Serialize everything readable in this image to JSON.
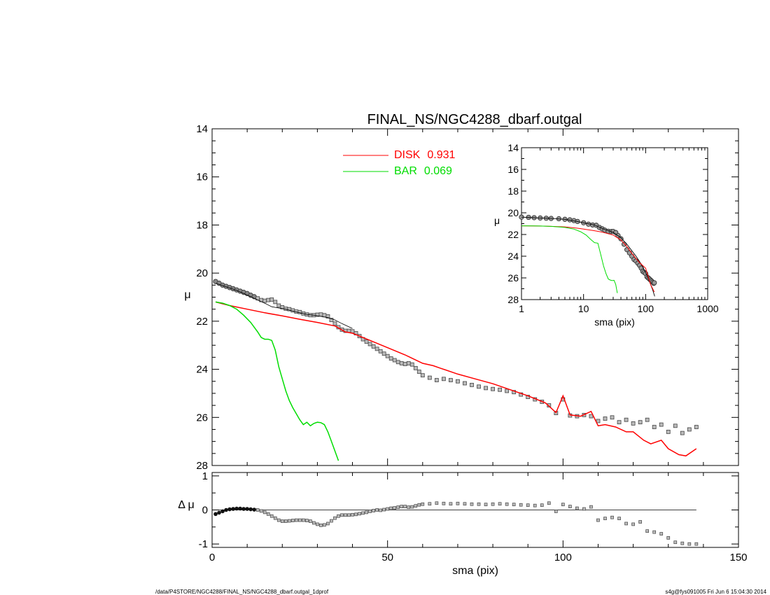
{
  "footer": {
    "left": "/data/P4STORE/NGC4288/FINAL_NS/NGC4288_dbarf.outgal_1dprof",
    "right": "s4g@fys091005  Fri Jun  6 15:04:30 2014"
  },
  "chart_data": [
    {
      "type": "scatter",
      "title": "FINAL_NS/NGC4288_dbarf.outgal",
      "xlabel": "",
      "ylabel": "μ",
      "xlim": [
        0,
        150
      ],
      "ylim": [
        28,
        14
      ],
      "y_inverted": true,
      "y_ticks": [
        "14",
        "16",
        "18",
        "20",
        "22",
        "24",
        "26",
        "28"
      ],
      "legend_placement": "top-center",
      "legend": [
        {
          "label": "DISK",
          "value": "0.931",
          "color": "#ff0000"
        },
        {
          "label": "BAR",
          "value": "0.069",
          "color": "#00dd00"
        }
      ],
      "series": [
        {
          "role": "observed",
          "color": "#555555",
          "marker": "square",
          "x": [
            1,
            2,
            3,
            4,
            5,
            6,
            7,
            8,
            9,
            10,
            11,
            12,
            13,
            14,
            15,
            16,
            17,
            18,
            19,
            20,
            21,
            22,
            23,
            24,
            25,
            26,
            27,
            28,
            29,
            30,
            31,
            32,
            33,
            34,
            35,
            36,
            37,
            38,
            39,
            40,
            41,
            42,
            43,
            44,
            45,
            46,
            47,
            48,
            49,
            50,
            51,
            52,
            53,
            54,
            55,
            56,
            57,
            58,
            59,
            60,
            62,
            64,
            66,
            68,
            70,
            72,
            74,
            76,
            78,
            80,
            82,
            84,
            86,
            88,
            90,
            92,
            94,
            96,
            98,
            100,
            102,
            104,
            106,
            108,
            110,
            112,
            114,
            116,
            118,
            120,
            122,
            124,
            126,
            128,
            130,
            132,
            134,
            136,
            138
          ],
          "y": [
            20.35,
            20.42,
            20.5,
            20.55,
            20.6,
            20.65,
            20.7,
            20.75,
            20.8,
            20.85,
            20.92,
            20.98,
            21.05,
            21.12,
            21.15,
            21.12,
            21.1,
            21.2,
            21.35,
            21.42,
            21.48,
            21.5,
            21.55,
            21.6,
            21.62,
            21.68,
            21.72,
            21.75,
            21.75,
            21.73,
            21.72,
            21.75,
            21.8,
            21.95,
            22.1,
            22.25,
            22.35,
            22.4,
            22.4,
            22.42,
            22.5,
            22.62,
            22.75,
            22.85,
            22.95,
            23.05,
            23.15,
            23.25,
            23.35,
            23.45,
            23.55,
            23.62,
            23.7,
            23.75,
            23.78,
            23.75,
            23.8,
            23.95,
            24.1,
            24.25,
            24.35,
            24.45,
            24.4,
            24.45,
            24.5,
            24.58,
            24.65,
            24.72,
            24.78,
            24.82,
            24.85,
            24.9,
            24.95,
            25.05,
            25.15,
            25.25,
            25.35,
            25.5,
            25.82,
            25.25,
            25.92,
            25.95,
            25.9,
            25.95,
            26.15,
            26.05,
            26.0,
            26.2,
            26.1,
            26.25,
            26.2,
            26.1,
            26.4,
            26.3,
            26.6,
            26.35,
            26.65,
            26.5,
            26.4
          ]
        },
        {
          "role": "total-model",
          "color": "#000000",
          "x": [
            1,
            3,
            5,
            7,
            9,
            11,
            13,
            15,
            17,
            19,
            21,
            23,
            25,
            27,
            29,
            31,
            33,
            35,
            37,
            40
          ],
          "y": [
            20.42,
            20.52,
            20.62,
            20.72,
            20.85,
            20.98,
            21.12,
            21.25,
            21.4,
            21.45,
            21.5,
            21.58,
            21.65,
            21.72,
            21.75,
            21.8,
            21.85,
            21.95,
            22.1,
            22.3
          ]
        },
        {
          "name": "DISK",
          "color": "#ff0000",
          "x": [
            1,
            5,
            10,
            15,
            20,
            25,
            30,
            35,
            38,
            40,
            45,
            50,
            55,
            60,
            63,
            65,
            70,
            75,
            80,
            85,
            90,
            95,
            98,
            100,
            102,
            105,
            108,
            110,
            112,
            115,
            118,
            120,
            123,
            125,
            128,
            130,
            133,
            135,
            138
          ],
          "y": [
            21.2,
            21.35,
            21.5,
            21.65,
            21.78,
            21.92,
            22.05,
            22.2,
            22.45,
            22.5,
            22.8,
            23.1,
            23.4,
            23.75,
            23.85,
            23.95,
            24.2,
            24.4,
            24.6,
            24.85,
            25.1,
            25.4,
            25.8,
            25.1,
            25.9,
            25.95,
            25.75,
            26.35,
            26.3,
            26.4,
            26.6,
            26.6,
            26.95,
            27.1,
            26.95,
            27.3,
            27.55,
            27.6,
            27.3
          ]
        },
        {
          "name": "BAR",
          "color": "#00dd00",
          "x": [
            1,
            3,
            5,
            7,
            9,
            11,
            13,
            14,
            15,
            16,
            17,
            18,
            19,
            20,
            21,
            22,
            23,
            24,
            25,
            26,
            27,
            28,
            29,
            30,
            31,
            32,
            33,
            34,
            35,
            36,
            37
          ],
          "y": [
            21.2,
            21.25,
            21.35,
            21.5,
            21.75,
            22.05,
            22.45,
            22.68,
            22.75,
            22.75,
            22.8,
            23.2,
            23.9,
            24.4,
            24.9,
            25.3,
            25.6,
            25.85,
            26.1,
            26.3,
            26.2,
            26.35,
            26.25,
            26.2,
            26.22,
            26.3,
            26.6,
            27.0,
            27.4,
            27.8,
            28.2
          ]
        }
      ]
    },
    {
      "type": "scatter",
      "title": "",
      "xlabel": "sma (pix)",
      "ylabel": "Δ μ",
      "xlim": [
        0,
        150
      ],
      "ylim": [
        -1.1,
        1.1
      ],
      "x_ticks": [
        "0",
        "50",
        "100",
        "150"
      ],
      "y_ticks": [
        "1",
        "0",
        "-1"
      ],
      "zero_line": true,
      "series": [
        {
          "role": "residual",
          "color": "#555555",
          "marker": "square",
          "x": [
            1,
            2,
            3,
            4,
            5,
            6,
            7,
            8,
            9,
            10,
            11,
            12,
            13,
            14,
            15,
            16,
            17,
            18,
            19,
            20,
            21,
            22,
            23,
            24,
            25,
            26,
            27,
            28,
            29,
            30,
            31,
            32,
            33,
            34,
            35,
            36,
            37,
            38,
            39,
            40,
            41,
            42,
            43,
            44,
            45,
            46,
            47,
            48,
            49,
            50,
            51,
            52,
            53,
            54,
            55,
            56,
            57,
            58,
            59,
            60,
            62,
            64,
            66,
            68,
            70,
            72,
            74,
            76,
            78,
            80,
            82,
            84,
            86,
            88,
            90,
            92,
            94,
            96,
            98,
            100,
            102,
            104,
            106,
            108,
            110,
            112,
            114,
            116,
            118,
            120,
            122,
            124,
            126,
            128,
            130,
            132,
            134,
            136,
            138
          ],
          "y": [
            -0.12,
            -0.08,
            -0.04,
            0.0,
            0.02,
            0.03,
            0.04,
            0.04,
            0.03,
            0.03,
            0.02,
            0.01,
            0.0,
            -0.03,
            -0.07,
            -0.12,
            -0.18,
            -0.24,
            -0.3,
            -0.33,
            -0.33,
            -0.32,
            -0.31,
            -0.3,
            -0.3,
            -0.3,
            -0.31,
            -0.33,
            -0.38,
            -0.42,
            -0.45,
            -0.44,
            -0.4,
            -0.32,
            -0.24,
            -0.18,
            -0.15,
            -0.15,
            -0.15,
            -0.14,
            -0.13,
            -0.11,
            -0.09,
            -0.07,
            -0.04,
            -0.02,
            0.0,
            -0.01,
            0.01,
            0.03,
            0.05,
            0.06,
            0.08,
            0.1,
            0.1,
            0.08,
            0.09,
            0.12,
            0.15,
            0.17,
            0.18,
            0.2,
            0.19,
            0.18,
            0.19,
            0.18,
            0.17,
            0.17,
            0.16,
            0.17,
            0.18,
            0.17,
            0.16,
            0.15,
            0.14,
            0.13,
            0.14,
            0.2,
            -0.04,
            0.16,
            0.1,
            0.05,
            0.03,
            0.09,
            -0.3,
            -0.25,
            -0.22,
            -0.25,
            -0.4,
            -0.42,
            -0.35,
            -0.62,
            -0.65,
            -0.7,
            -0.82,
            -0.95,
            -0.98,
            -1.0,
            -1.0
          ]
        }
      ]
    },
    {
      "type": "scatter",
      "title": "",
      "xlabel": "sma (pix)",
      "ylabel": "μ",
      "x_scale": "log",
      "xlim": [
        1,
        1000
      ],
      "ylim": [
        28,
        14
      ],
      "y_inverted": true,
      "x_ticks": [
        "1",
        "10",
        "100",
        "1000"
      ],
      "y_ticks": [
        "14",
        "16",
        "18",
        "20",
        "22",
        "24",
        "26",
        "28"
      ],
      "placement": "inset top-right",
      "series": [
        {
          "role": "observed",
          "color": "#555555",
          "marker": "circle",
          "x": [
            1,
            1.3,
            1.6,
            2,
            2.5,
            3,
            4,
            5,
            6,
            7,
            8,
            10,
            12,
            14,
            16,
            18,
            20,
            22,
            25,
            28,
            30,
            33,
            36,
            40,
            45,
            50,
            55,
            60,
            65,
            70,
            75,
            80,
            85,
            90,
            95,
            100,
            105,
            110,
            115,
            120,
            125,
            130,
            135,
            138
          ],
          "y": [
            20.4,
            20.42,
            20.45,
            20.48,
            20.5,
            20.52,
            20.55,
            20.6,
            20.65,
            20.72,
            20.8,
            20.92,
            21.05,
            21.12,
            21.15,
            21.35,
            21.48,
            21.6,
            21.7,
            21.73,
            21.72,
            21.82,
            22.1,
            22.4,
            22.9,
            23.4,
            23.7,
            24.0,
            24.3,
            24.45,
            24.65,
            24.85,
            25.1,
            25.4,
            25.5,
            25.6,
            25.9,
            26.0,
            26.1,
            26.2,
            26.3,
            26.4,
            26.5,
            26.45
          ]
        },
        {
          "role": "total-model",
          "color": "#000000",
          "x": [
            1,
            2,
            3,
            5,
            8,
            10,
            15,
            20,
            30,
            40,
            50,
            60,
            70,
            80,
            90,
            100,
            110,
            120,
            130,
            140
          ],
          "y": [
            20.4,
            20.48,
            20.52,
            20.6,
            20.8,
            20.92,
            21.12,
            21.45,
            21.8,
            22.3,
            22.9,
            23.5,
            24.0,
            24.5,
            25.0,
            25.5,
            26.0,
            26.6,
            27.1,
            27.7
          ]
        },
        {
          "name": "DISK",
          "color": "#ff0000",
          "x": [
            1,
            2,
            3,
            5,
            8,
            10,
            15,
            20,
            30,
            40,
            50,
            60,
            80,
            100,
            120,
            138
          ],
          "y": [
            21.2,
            21.22,
            21.25,
            21.3,
            21.42,
            21.5,
            21.65,
            21.78,
            22.05,
            22.5,
            23.1,
            23.75,
            24.6,
            25.1,
            26.6,
            27.3
          ]
        },
        {
          "name": "BAR",
          "color": "#00dd00",
          "x": [
            1,
            2,
            3,
            5,
            7,
            9,
            11,
            13,
            15,
            17,
            19,
            21,
            23,
            25,
            27,
            29,
            31,
            33,
            35,
            37
          ],
          "y": [
            21.2,
            21.22,
            21.25,
            21.35,
            21.5,
            21.75,
            22.05,
            22.45,
            22.75,
            22.8,
            23.9,
            24.9,
            25.6,
            26.1,
            26.2,
            26.25,
            26.22,
            26.6,
            27.4,
            28.2
          ]
        }
      ]
    }
  ]
}
